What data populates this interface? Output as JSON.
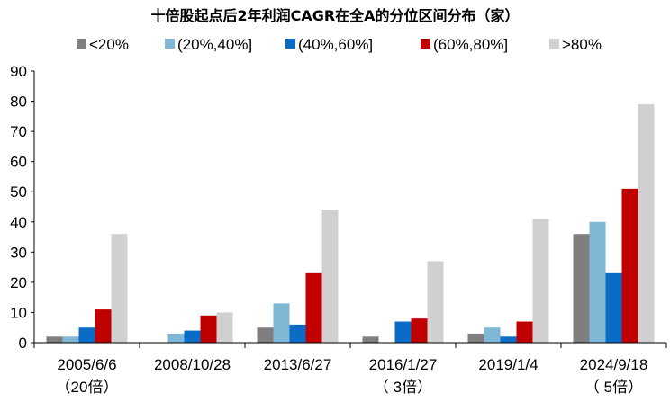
{
  "chart_data": {
    "type": "bar",
    "title": "十倍股起点后2年利润CAGR在全A的分位区间分布（家）",
    "categories": [
      "2005/6/6",
      "2008/10/28",
      "2013/6/27",
      "2016/1/27",
      "2019/1/4",
      "2024/9/18"
    ],
    "category_sublabels": [
      "（20倍）",
      "",
      "",
      "（ 3倍）",
      "",
      "（ 5倍）"
    ],
    "ylim": [
      0,
      90
    ],
    "yticks": [
      0,
      10,
      20,
      30,
      40,
      50,
      60,
      70,
      80,
      90
    ],
    "legend_position": "top",
    "grid": false,
    "series": [
      {
        "name": "<20%",
        "color": "#7f7f7f",
        "values": [
          2,
          0,
          5,
          2,
          3,
          36
        ]
      },
      {
        "name": "(20%,40%]",
        "color": "#7fb7d4",
        "values": [
          2,
          3,
          13,
          0,
          5,
          40
        ]
      },
      {
        "name": "(40%,60%]",
        "color": "#0a6cc6",
        "values": [
          5,
          4,
          6,
          7,
          2,
          23
        ]
      },
      {
        "name": "(60%,80%]",
        "color": "#c00000",
        "values": [
          11,
          9,
          23,
          8,
          7,
          51
        ]
      },
      {
        "name": ">80%",
        "color": "#d0d0d0",
        "values": [
          36,
          10,
          44,
          27,
          41,
          79
        ]
      }
    ]
  }
}
